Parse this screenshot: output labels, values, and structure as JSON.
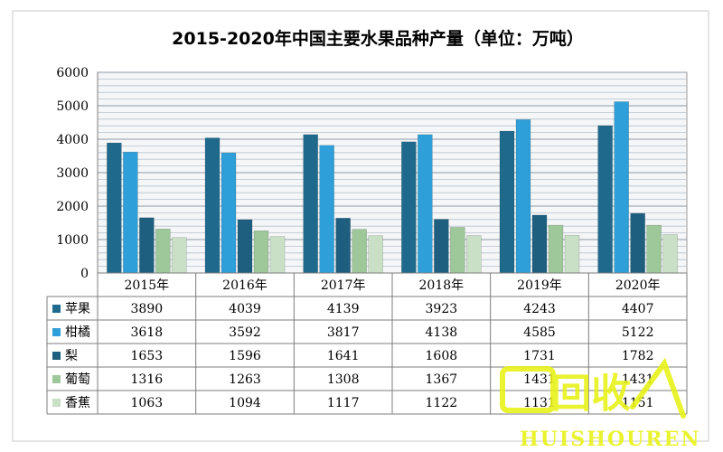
{
  "chart_data": {
    "type": "bar",
    "title": "2015-2020年中国主要水果品种产量（单位：万吨）",
    "xlabel": "",
    "ylabel": "",
    "ylim": [
      0,
      6000
    ],
    "yticks": [
      0,
      1000,
      2000,
      3000,
      4000,
      5000,
      6000
    ],
    "grid": true,
    "legend": "data-table-left",
    "categories": [
      "2015年",
      "2016年",
      "2017年",
      "2018年",
      "2019年",
      "2020年"
    ],
    "series": [
      {
        "name": "苹果",
        "color": "#1f6a8c",
        "values": [
          3890,
          4039,
          4139,
          3923,
          4243,
          4407
        ]
      },
      {
        "name": "柑橘",
        "color": "#2e9fd8",
        "values": [
          3618,
          3592,
          3817,
          4138,
          4585,
          5122
        ]
      },
      {
        "name": "梨",
        "color": "#1e5f80",
        "values": [
          1653,
          1596,
          1641,
          1608,
          1731,
          1782
        ]
      },
      {
        "name": "葡萄",
        "color": "#9ec79a",
        "values": [
          1316,
          1263,
          1308,
          1367,
          1431,
          1431
        ]
      },
      {
        "name": "香蕉",
        "color": "#c9dfc6",
        "values": [
          1063,
          1094,
          1117,
          1122,
          1131,
          1151
        ]
      }
    ]
  },
  "watermark": {
    "text": "HUISHOUREN",
    "logo_text": "回收",
    "color": "#e8f21a"
  }
}
